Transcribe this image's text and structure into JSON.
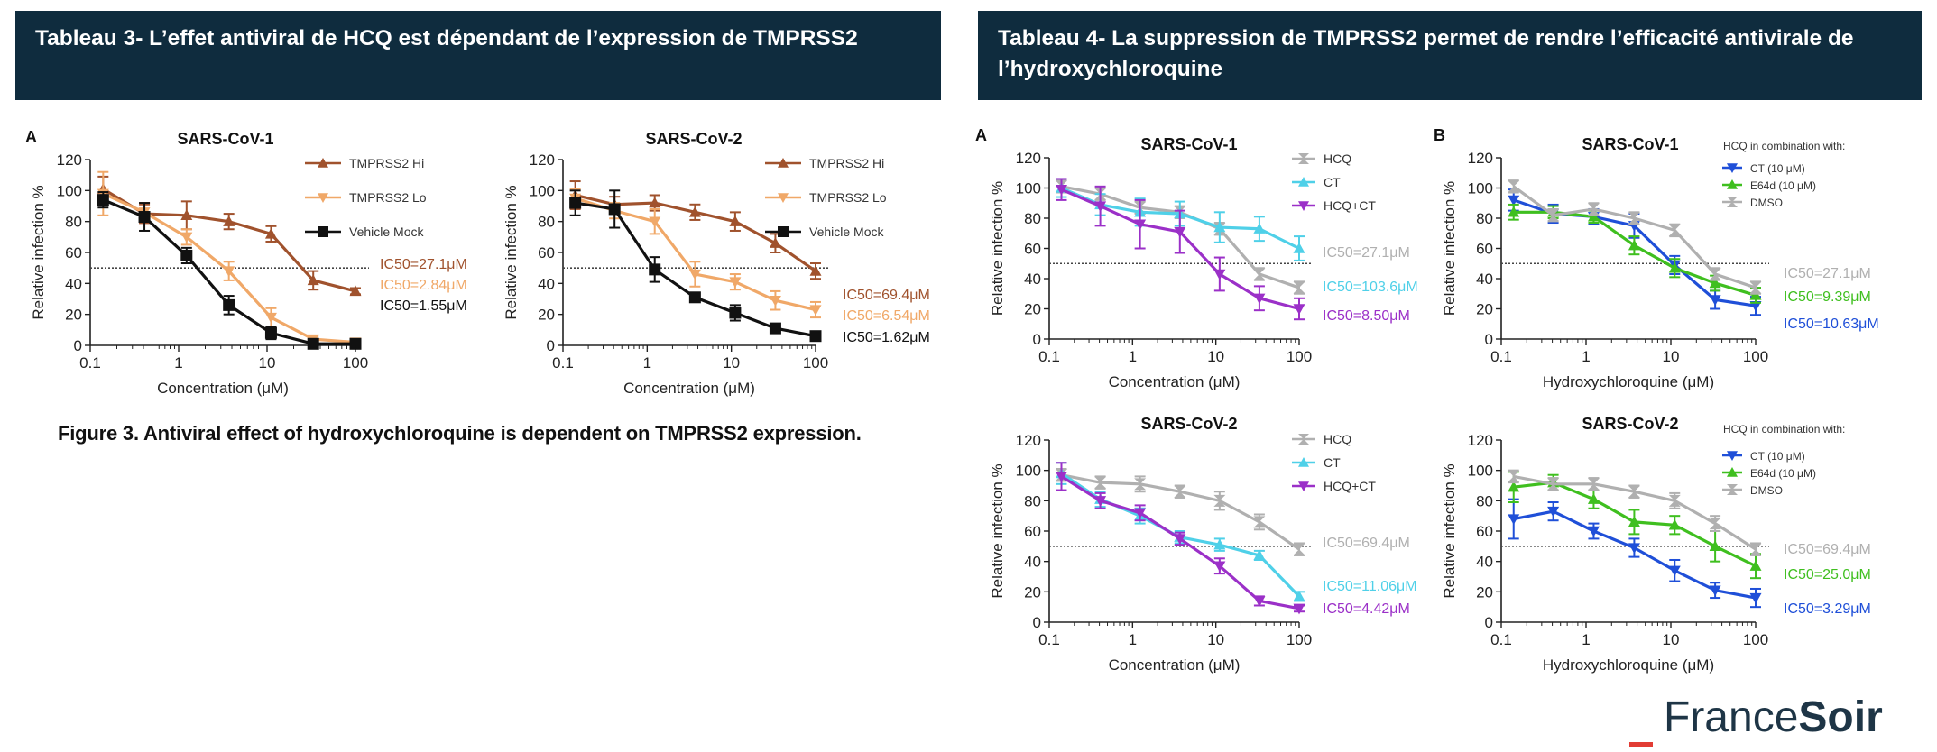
{
  "banners": {
    "left": "Tableau 3- L’effet antiviral de HCQ est dépendant de l’expression de TMPRSS2",
    "right": "Tableau 4- La suppression de TMPRSS2 permet de rendre l’efficacité antivirale de l’hydroxychloroquine"
  },
  "caption": "Figure 3. Antiviral effect of hydroxychloroquine is dependent on TMPRSS2 expression.",
  "logo": {
    "part1": "France",
    "part2": "Soir",
    "accent": "#e23c34",
    "color": "#1e3546"
  },
  "colors": {
    "banner_bg": "#0f2c3e",
    "tmprss2_hi": "#a0522d",
    "tmprss2_lo": "#f0a868",
    "mock": "#111111",
    "hcq": "#b0b0b0",
    "ct": "#4fd0e8",
    "hcq_ct": "#9b30c8",
    "ct_blue": "#1f4fd8",
    "e64d": "#3fbf1f"
  },
  "chart_data": [
    {
      "type": "line",
      "panel_letter": "A",
      "title": "SARS-CoV-1",
      "xlabel": "Concentration (μM)",
      "ylabel": "Relative infection %",
      "x_scale": "log",
      "xlim": [
        0.1,
        100
      ],
      "ylim": [
        0,
        120
      ],
      "xticks": [
        "0.1",
        "1",
        "10",
        "100"
      ],
      "yticks": [
        0,
        20,
        40,
        60,
        80,
        100,
        120
      ],
      "threshold": 50,
      "x": [
        0.14,
        0.41,
        1.23,
        3.7,
        11.1,
        33.3,
        100
      ],
      "series": [
        {
          "name": "TMPRSS2 Hi",
          "color": "#a0522d",
          "marker": "tri-up",
          "values": [
            101,
            85,
            84,
            80,
            72,
            42,
            35
          ],
          "err": [
            8,
            6,
            9,
            5,
            5,
            6,
            2
          ],
          "ic50": "IC50=27.1μM"
        },
        {
          "name": "TMPRSS2 Lo",
          "color": "#f0a868",
          "marker": "tri-down",
          "values": [
            98,
            86,
            70,
            48,
            18,
            4,
            2
          ],
          "err": [
            14,
            6,
            5,
            6,
            6,
            2,
            1
          ],
          "ic50": "IC50=2.84μM"
        },
        {
          "name": "Vehicle Mock",
          "color": "#111111",
          "marker": "square",
          "values": [
            94,
            83,
            58,
            26,
            8,
            1,
            1
          ],
          "err": [
            5,
            9,
            5,
            6,
            4,
            1,
            1
          ],
          "ic50": "IC50=1.55μM"
        }
      ]
    },
    {
      "type": "line",
      "panel_letter": "",
      "title": "SARS-CoV-2",
      "xlabel": "Concentration (μM)",
      "ylabel": "Relative infection %",
      "x_scale": "log",
      "xlim": [
        0.1,
        100
      ],
      "ylim": [
        0,
        120
      ],
      "xticks": [
        "0.1",
        "1",
        "10",
        "100"
      ],
      "yticks": [
        0,
        20,
        40,
        60,
        80,
        100,
        120
      ],
      "threshold": 50,
      "x": [
        0.14,
        0.41,
        1.23,
        3.7,
        11.1,
        33.3,
        100
      ],
      "series": [
        {
          "name": "TMPRSS2 Hi",
          "color": "#a0522d",
          "marker": "tri-up",
          "values": [
            97,
            91,
            92,
            86,
            80,
            66,
            48
          ],
          "err": [
            9,
            5,
            5,
            5,
            6,
            6,
            5
          ],
          "ic50": "IC50=69.4μM"
        },
        {
          "name": "TMPRSS2 Lo",
          "color": "#f0a868",
          "marker": "tri-down",
          "values": [
            95,
            87,
            80,
            46,
            41,
            29,
            23
          ],
          "err": [
            6,
            5,
            8,
            8,
            5,
            6,
            5
          ],
          "ic50": "IC50=6.54μM"
        },
        {
          "name": "Vehicle Mock",
          "color": "#111111",
          "marker": "square",
          "values": [
            92,
            88,
            49,
            31,
            21,
            11,
            6
          ],
          "err": [
            8,
            12,
            8,
            3,
            5,
            2,
            2
          ],
          "ic50": "IC50=1.62μM"
        }
      ]
    },
    {
      "type": "line",
      "panel_letter": "A",
      "title": "SARS-CoV-1",
      "xlabel": "Concentration (μM)",
      "ylabel": "Relative infection %",
      "x_scale": "log",
      "xlim": [
        0.1,
        100
      ],
      "ylim": [
        0,
        120
      ],
      "xticks": [
        "0.1",
        "1",
        "10",
        "100"
      ],
      "yticks": [
        0,
        20,
        40,
        60,
        80,
        100,
        120
      ],
      "threshold": 50,
      "x": [
        0.14,
        0.41,
        1.23,
        3.7,
        11.1,
        33.3,
        100
      ],
      "series": [
        {
          "name": "HCQ",
          "color": "#b0b0b0",
          "marker": "hourglass",
          "values": [
            101,
            96,
            87,
            84,
            73,
            43,
            34
          ],
          "err": [
            4,
            4,
            4,
            4,
            4,
            4,
            4
          ],
          "ic50": "IC50=27.1μM"
        },
        {
          "name": "CT",
          "color": "#4fd0e8",
          "marker": "tri-up",
          "values": [
            100,
            89,
            84,
            83,
            74,
            73,
            60
          ],
          "err": [
            6,
            7,
            9,
            8,
            10,
            8,
            8
          ],
          "ic50": "IC50=103.6μM"
        },
        {
          "name": "HCQ+CT",
          "color": "#9b30c8",
          "marker": "tri-down",
          "values": [
            99,
            88,
            76,
            71,
            43,
            27,
            20
          ],
          "err": [
            7,
            13,
            16,
            14,
            11,
            8,
            7
          ],
          "ic50": "IC50=8.50μM"
        }
      ]
    },
    {
      "type": "line",
      "panel_letter": "B",
      "title": "SARS-CoV-1",
      "xlabel": "Hydroxychloroquine (μM)",
      "ylabel": "Relative infection %",
      "legend_title": "HCQ in combination with:",
      "x_scale": "log",
      "xlim": [
        0.1,
        100
      ],
      "ylim": [
        0,
        120
      ],
      "xticks": [
        "0.1",
        "1",
        "10",
        "100"
      ],
      "yticks": [
        0,
        20,
        40,
        60,
        80,
        100,
        120
      ],
      "threshold": 50,
      "x": [
        0.14,
        0.41,
        1.23,
        3.7,
        11.1,
        33.3,
        100
      ],
      "series": [
        {
          "name": "CT (10 μM)",
          "color": "#1f4fd8",
          "marker": "tri-down",
          "values": [
            92,
            83,
            81,
            75,
            49,
            26,
            22
          ],
          "err": [
            7,
            6,
            5,
            8,
            6,
            6,
            6
          ],
          "ic50": "IC50=10.63μM"
        },
        {
          "name": "E64d (10 μM)",
          "color": "#3fbf1f",
          "marker": "tri-up",
          "values": [
            84,
            84,
            81,
            62,
            47,
            37,
            29
          ],
          "err": [
            5,
            4,
            4,
            6,
            6,
            5,
            5
          ],
          "ic50": "IC50=9.39μM"
        },
        {
          "name": "DMSO",
          "color": "#b0b0b0",
          "marker": "hourglass",
          "values": [
            101,
            82,
            86,
            80,
            72,
            43,
            34
          ],
          "err": [
            4,
            4,
            4,
            4,
            4,
            4,
            4
          ],
          "ic50": "IC50=27.1μM"
        }
      ]
    },
    {
      "type": "line",
      "panel_letter": "",
      "title": "SARS-CoV-2",
      "xlabel": "Concentration (μM)",
      "ylabel": "Relative infection %",
      "x_scale": "log",
      "xlim": [
        0.1,
        100
      ],
      "ylim": [
        0,
        120
      ],
      "xticks": [
        "0.1",
        "1",
        "10",
        "100"
      ],
      "yticks": [
        0,
        20,
        40,
        60,
        80,
        100,
        120
      ],
      "threshold": 50,
      "x": [
        0.14,
        0.41,
        1.23,
        3.7,
        11.1,
        33.3,
        100
      ],
      "series": [
        {
          "name": "HCQ",
          "color": "#b0b0b0",
          "marker": "hourglass",
          "values": [
            97,
            92,
            91,
            86,
            80,
            66,
            48
          ],
          "err": [
            4,
            4,
            5,
            4,
            6,
            5,
            4
          ],
          "ic50": "IC50=69.4μM"
        },
        {
          "name": "CT",
          "color": "#4fd0e8",
          "marker": "tri-up",
          "values": [
            98,
            81,
            70,
            56,
            51,
            44,
            17
          ],
          "err": [
            7,
            5,
            5,
            4,
            4,
            3,
            3
          ],
          "ic50": "IC50=11.06μM"
        },
        {
          "name": "HCQ+CT",
          "color": "#9b30c8",
          "marker": "tri-down",
          "values": [
            96,
            80,
            72,
            55,
            37,
            14,
            9
          ],
          "err": [
            9,
            5,
            5,
            4,
            5,
            3,
            2
          ],
          "ic50": "IC50=4.42μM"
        }
      ]
    },
    {
      "type": "line",
      "panel_letter": "",
      "title": "SARS-CoV-2",
      "xlabel": "Hydroxychloroquine (μM)",
      "ylabel": "Relative infection %",
      "legend_title": "HCQ in combination with:",
      "x_scale": "log",
      "xlim": [
        0.1,
        100
      ],
      "ylim": [
        0,
        120
      ],
      "xticks": [
        "0.1",
        "1",
        "10",
        "100"
      ],
      "yticks": [
        0,
        20,
        40,
        60,
        80,
        100,
        120
      ],
      "threshold": 50,
      "x": [
        0.14,
        0.41,
        1.23,
        3.7,
        11.1,
        33.3,
        100
      ],
      "series": [
        {
          "name": "CT (10 μM)",
          "color": "#1f4fd8",
          "marker": "tri-down",
          "values": [
            68,
            73,
            60,
            49,
            34,
            21,
            16
          ],
          "err": [
            13,
            6,
            5,
            6,
            7,
            5,
            6
          ],
          "ic50": "IC50=3.29μM"
        },
        {
          "name": "E64d (10 μM)",
          "color": "#3fbf1f",
          "marker": "tri-up",
          "values": [
            89,
            92,
            81,
            66,
            64,
            50,
            37
          ],
          "err": [
            10,
            5,
            6,
            8,
            6,
            10,
            8
          ],
          "ic50": "IC50=25.0μM"
        },
        {
          "name": "DMSO",
          "color": "#b0b0b0",
          "marker": "hourglass",
          "values": [
            96,
            91,
            91,
            86,
            80,
            65,
            48
          ],
          "err": [
            4,
            4,
            4,
            4,
            5,
            5,
            4
          ],
          "ic50": "IC50=69.4μM"
        }
      ]
    }
  ]
}
